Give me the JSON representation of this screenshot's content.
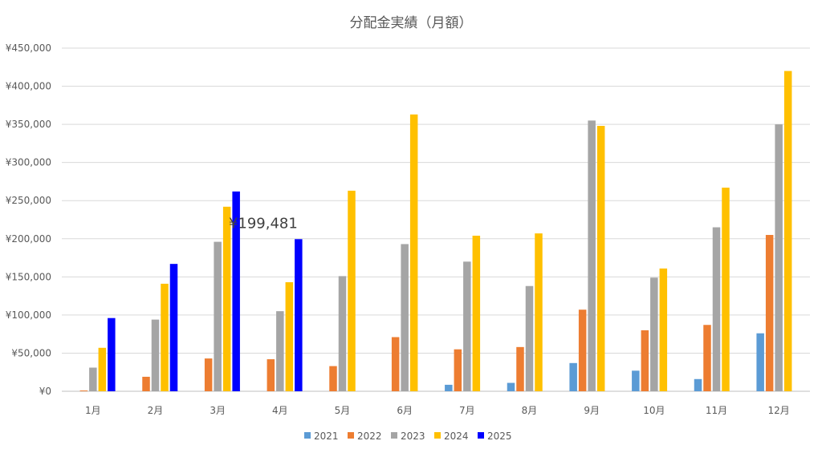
{
  "chart_data": {
    "type": "bar",
    "title": "分配金実績（月額）",
    "categories": [
      "1月",
      "2月",
      "3月",
      "4月",
      "5月",
      "6月",
      "7月",
      "8月",
      "9月",
      "10月",
      "11月",
      "12月"
    ],
    "series": [
      {
        "name": "2021",
        "color": "#5b9bd5",
        "values": [
          0,
          0,
          0,
          0,
          0,
          0,
          8500,
          11000,
          37000,
          27000,
          16000,
          76000
        ]
      },
      {
        "name": "2022",
        "color": "#ed7d31",
        "values": [
          1000,
          19000,
          43000,
          42000,
          33000,
          71000,
          55000,
          58000,
          107000,
          80000,
          87000,
          205000
        ]
      },
      {
        "name": "2023",
        "color": "#a5a5a5",
        "values": [
          31000,
          94000,
          196000,
          105000,
          151000,
          193000,
          170000,
          138000,
          355000,
          149000,
          215000,
          350000
        ]
      },
      {
        "name": "2024",
        "color": "#ffc000",
        "values": [
          57000,
          141000,
          242000,
          143000,
          263000,
          363000,
          204000,
          207000,
          348000,
          161000,
          267000,
          420000
        ]
      },
      {
        "name": "2025",
        "color": "#0000ff",
        "values": [
          96000,
          167000,
          262000,
          199481,
          null,
          null,
          null,
          null,
          null,
          null,
          null,
          null
        ]
      }
    ],
    "ylim": [
      0,
      450000
    ],
    "yticks": [
      "¥0",
      "¥50,000",
      "¥100,000",
      "¥150,000",
      "¥200,000",
      "¥250,000",
      "¥300,000",
      "¥350,000",
      "¥400,000",
      "¥450,000"
    ],
    "ytick_values": [
      0,
      50000,
      100000,
      150000,
      200000,
      250000,
      300000,
      350000,
      400000,
      450000
    ],
    "grid": true,
    "legend": "bottom",
    "annotation": {
      "text": "¥199,481",
      "category": "4月",
      "series": "2025"
    }
  }
}
